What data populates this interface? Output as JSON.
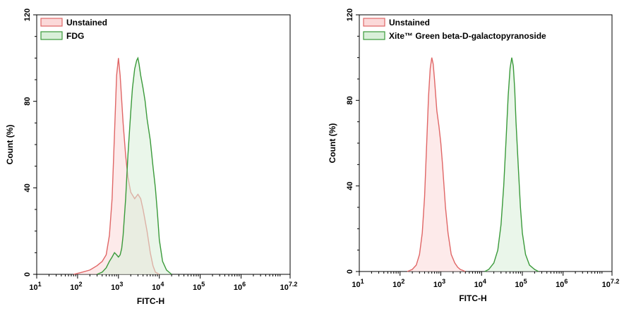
{
  "chart_data": [
    {
      "type": "area",
      "xlabel": "FITC-H",
      "ylabel": "Count (%)",
      "xscale": "log",
      "xlim": [
        10,
        15848932
      ],
      "ylim": [
        0,
        120
      ],
      "x_ticks": [
        {
          "base": "10",
          "exp": "1"
        },
        {
          "base": "10",
          "exp": "2"
        },
        {
          "base": "10",
          "exp": "3"
        },
        {
          "base": "10",
          "exp": "4"
        },
        {
          "base": "10",
          "exp": "5"
        },
        {
          "base": "10",
          "exp": "6"
        },
        {
          "base": "10",
          "exp": "7.2"
        }
      ],
      "y_ticks": [
        "0",
        "40",
        "80",
        "120"
      ],
      "legend_position": "top-left",
      "grid": false,
      "series": [
        {
          "name": "Unstained",
          "color": "#e06666",
          "fill": "#fbd9d9",
          "x": [
            80,
            130,
            200,
            300,
            400,
            500,
            600,
            700,
            800,
            900,
            1000,
            1100,
            1300,
            1500,
            1700,
            2000,
            2500,
            3000,
            3500,
            4000,
            5000,
            6000,
            7000,
            8000,
            10000
          ],
          "y": [
            0,
            1,
            2,
            4,
            6,
            9,
            18,
            35,
            65,
            92,
            100,
            92,
            70,
            55,
            45,
            38,
            35,
            37,
            35,
            30,
            20,
            10,
            4,
            1,
            0
          ]
        },
        {
          "name": "FDG",
          "color": "#3a9a3a",
          "fill": "#d9efd9",
          "x": [
            300,
            400,
            500,
            600,
            700,
            800,
            900,
            1000,
            1100,
            1200,
            1300,
            1500,
            1700,
            2000,
            2200,
            2500,
            2800,
            3000,
            3200,
            3500,
            4000,
            4500,
            5000,
            6000,
            7000,
            8000,
            9000,
            10000,
            12000,
            15000,
            20000
          ],
          "y": [
            0,
            1,
            3,
            6,
            8,
            10,
            9,
            8,
            9,
            12,
            18,
            35,
            55,
            75,
            86,
            95,
            99,
            100,
            97,
            92,
            86,
            80,
            72,
            62,
            50,
            40,
            28,
            16,
            6,
            2,
            0
          ]
        }
      ]
    },
    {
      "type": "area",
      "xlabel": "FITC-H",
      "ylabel": "Count (%)",
      "xscale": "log",
      "xlim": [
        10,
        15848932
      ],
      "ylim": [
        0,
        120
      ],
      "x_ticks": [
        {
          "base": "10",
          "exp": "1"
        },
        {
          "base": "10",
          "exp": "2"
        },
        {
          "base": "10",
          "exp": "3"
        },
        {
          "base": "10",
          "exp": "4"
        },
        {
          "base": "10",
          "exp": "5"
        },
        {
          "base": "10",
          "exp": "6"
        },
        {
          "base": "10",
          "exp": "7.2"
        }
      ],
      "y_ticks": [
        "0",
        "40",
        "80",
        "120"
      ],
      "legend_position": "top-left",
      "grid": false,
      "series": [
        {
          "name": "Unstained",
          "color": "#e06666",
          "fill": "#fbd9d9",
          "x": [
            150,
            200,
            250,
            300,
            350,
            400,
            450,
            500,
            550,
            600,
            650,
            700,
            800,
            900,
            1000,
            1100,
            1300,
            1500,
            1800,
            2200,
            2600,
            3000,
            3500,
            4000
          ],
          "y": [
            0,
            1,
            3,
            8,
            18,
            35,
            60,
            82,
            95,
            100,
            97,
            90,
            75,
            68,
            60,
            50,
            30,
            18,
            8,
            4,
            2,
            1,
            0.5,
            0
          ]
        },
        {
          "name": "Xite™ Green beta-D-galactopyranoside",
          "color": "#3a9a3a",
          "fill": "#d9efd9",
          "x": [
            12000,
            15000,
            20000,
            25000,
            30000,
            35000,
            40000,
            45000,
            50000,
            55000,
            60000,
            65000,
            70000,
            80000,
            90000,
            100000,
            120000,
            150000,
            200000,
            250000
          ],
          "y": [
            0,
            1,
            4,
            10,
            22,
            40,
            62,
            82,
            95,
            100,
            96,
            85,
            70,
            48,
            30,
            18,
            8,
            3,
            1,
            0
          ]
        }
      ]
    }
  ]
}
